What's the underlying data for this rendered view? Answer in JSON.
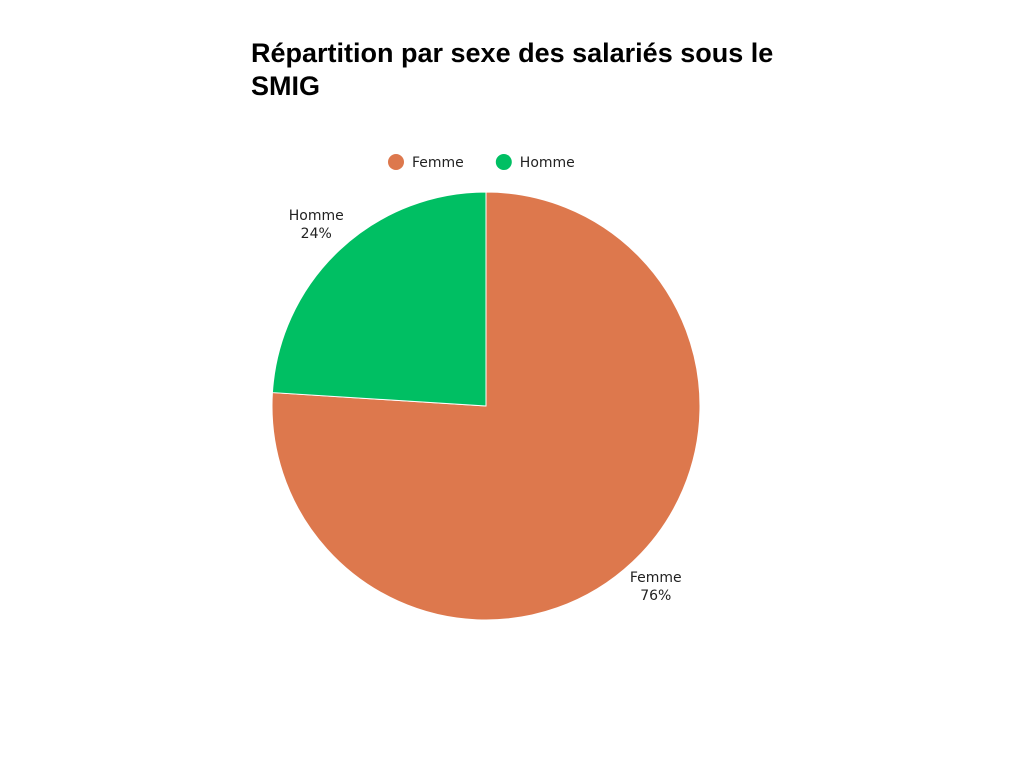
{
  "chart_data": {
    "type": "pie",
    "title": "Répartition par sexe des salariés sous le SMIG",
    "categories": [
      "Femme",
      "Homme"
    ],
    "values": [
      76,
      24
    ],
    "value_labels": [
      "76%",
      "24%"
    ],
    "colors": [
      "#dd784d",
      "#00bf63"
    ]
  }
}
